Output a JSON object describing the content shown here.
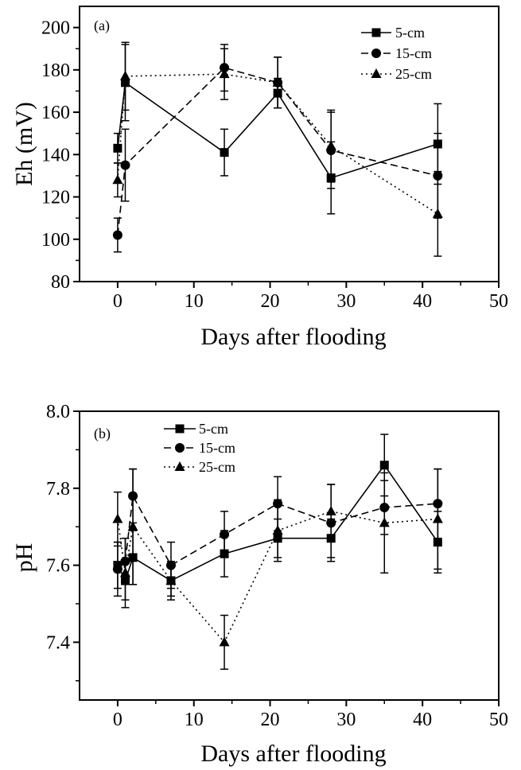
{
  "chart_data": [
    {
      "type": "line",
      "panel_label": "(a)",
      "xlabel": "Days after flooding",
      "ylabel": "Eh (mV)",
      "xlim": [
        -5,
        50
      ],
      "ylim": [
        80,
        210
      ],
      "xticks": [
        "0",
        "10",
        "20",
        "30",
        "40",
        "50"
      ],
      "yticks": [
        "80",
        "100",
        "120",
        "140",
        "160",
        "180",
        "200"
      ],
      "legend_position": "top-right",
      "series": [
        {
          "name": "5-cm",
          "marker": "square",
          "line_style": "solid",
          "x": [
            0,
            1,
            14,
            21,
            28,
            42
          ],
          "y": [
            143,
            174,
            141,
            169,
            129,
            145
          ],
          "error": [
            7,
            18,
            11,
            7,
            17,
            19
          ]
        },
        {
          "name": "15-cm",
          "marker": "circle",
          "line_style": "dashed",
          "x": [
            0,
            1,
            14,
            21,
            28,
            42
          ],
          "y": [
            102,
            135,
            181,
            174,
            142,
            130
          ],
          "error": [
            8,
            17,
            11,
            12,
            18,
            20
          ]
        },
        {
          "name": "25-cm",
          "marker": "triangle",
          "line_style": "dotted",
          "x": [
            0,
            1,
            14,
            21,
            28,
            42
          ],
          "y": [
            128,
            177,
            178,
            174,
            144,
            112
          ],
          "error": [
            8,
            16,
            12,
            12,
            17,
            20
          ]
        }
      ]
    },
    {
      "type": "line",
      "panel_label": "(b)",
      "xlabel": "Days after flooding",
      "ylabel": "pH",
      "xlim": [
        -5,
        50
      ],
      "ylim": [
        7.25,
        8.0
      ],
      "xticks": [
        "0",
        "10",
        "20",
        "30",
        "40",
        "50"
      ],
      "yticks": [
        "7.4",
        "7.6",
        "7.8",
        "8.0"
      ],
      "legend_position": "top-left",
      "series": [
        {
          "name": "5-cm",
          "marker": "square",
          "line_style": "solid",
          "x": [
            0,
            1,
            2,
            7,
            14,
            21,
            28,
            35,
            42
          ],
          "y": [
            7.6,
            7.56,
            7.62,
            7.56,
            7.63,
            7.67,
            7.67,
            7.86,
            7.66
          ],
          "error": [
            0.06,
            0.05,
            0.07,
            0.04,
            0.06,
            0.05,
            0.05,
            0.08,
            0.08
          ]
        },
        {
          "name": "15-cm",
          "marker": "circle",
          "line_style": "dashed",
          "x": [
            0,
            1,
            2,
            7,
            14,
            21,
            28,
            35,
            42
          ],
          "y": [
            7.59,
            7.61,
            7.78,
            7.6,
            7.68,
            7.76,
            7.71,
            7.75,
            7.76
          ],
          "error": [
            0.07,
            0.06,
            0.07,
            0.06,
            0.06,
            0.07,
            0.1,
            0.07,
            0.09
          ]
        },
        {
          "name": "25-cm",
          "marker": "triangle",
          "line_style": "dotted",
          "x": [
            0,
            1,
            2,
            7,
            14,
            21,
            28,
            35,
            42
          ],
          "y": [
            7.72,
            7.58,
            7.7,
            7.56,
            7.4,
            7.69,
            7.74,
            7.71,
            7.72
          ],
          "error": [
            0.07,
            0.09,
            0.15,
            0.05,
            0.07,
            0.08,
            0.07,
            0.13,
            0.13
          ]
        }
      ]
    }
  ]
}
